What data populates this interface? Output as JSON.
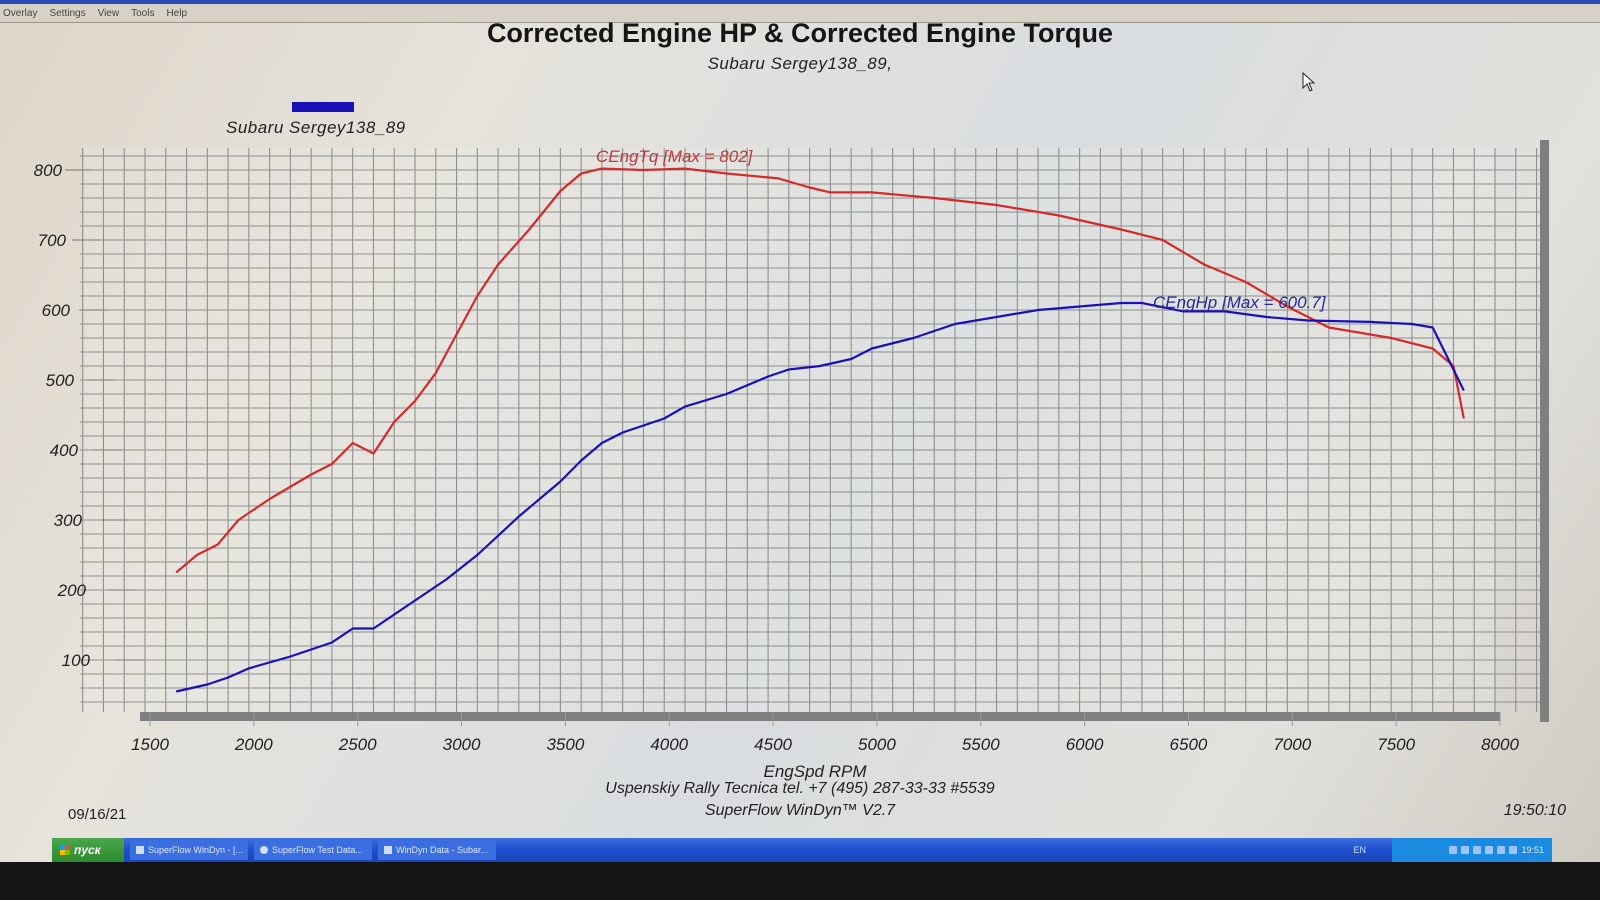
{
  "menu": {
    "items": [
      "Overlay",
      "Settings",
      "View",
      "Tools",
      "Help"
    ]
  },
  "header": {
    "title": "Corrected Engine HP & Corrected Engine Torque",
    "subtitle": "Subaru Sergey138_89,"
  },
  "legend": {
    "label": "Subaru Sergey138_89",
    "swatch_color": "#1a10b8"
  },
  "annotations": {
    "torque": "CEngTq [Max = 802]",
    "hp": "CEngHp [Max = 600.7]"
  },
  "footer": {
    "date": "09/16/21",
    "time": "19:50:10",
    "company": "Uspenskiy Rally Tecnica   tel. +7 (495) 287-33-33 #5539",
    "app": "SuperFlow WinDyn™ V2.7"
  },
  "taskbar": {
    "start_label": "пуск",
    "tasks": [
      "SuperFlow WinDyn - [...",
      "SuperFlow Test Data...",
      "WinDyn Data - Subar..."
    ],
    "language": "EN",
    "clock": "19:51"
  },
  "colors": {
    "torque": "#d42a2a",
    "hp": "#1a10b8",
    "grid": "#8e9090"
  },
  "chart_data": {
    "type": "line",
    "title": "Corrected Engine HP & Corrected Engine Torque",
    "subtitle": "Subaru Sergey138_89,",
    "xlabel": "EngSpd  RPM",
    "ylabel": "",
    "xlim": [
      1500,
      8000
    ],
    "ylim": [
      0,
      830
    ],
    "x_ticks": [
      1500,
      2000,
      2500,
      3000,
      3500,
      4000,
      4500,
      5000,
      5500,
      6000,
      6500,
      7000,
      7500,
      8000
    ],
    "y_ticks": [
      100,
      200,
      300,
      400,
      500,
      600,
      700,
      800
    ],
    "grid": true,
    "legend": [
      "Subaru Sergey138_89"
    ],
    "series": [
      {
        "name": "CEngTq",
        "label": "CEngTq [Max = 802]",
        "color": "#d42a2a",
        "max": 802,
        "x": [
          1650,
          1750,
          1850,
          1950,
          2100,
          2300,
          2400,
          2500,
          2600,
          2700,
          2800,
          2900,
          3000,
          3100,
          3200,
          3350,
          3500,
          3600,
          3700,
          3900,
          4100,
          4300,
          4550,
          4700,
          4800,
          5000,
          5300,
          5600,
          5900,
          6200,
          6400,
          6600,
          6800,
          7000,
          7200,
          7500,
          7700,
          7800,
          7850
        ],
        "values": [
          225,
          250,
          265,
          300,
          330,
          365,
          380,
          410,
          395,
          440,
          470,
          510,
          565,
          620,
          665,
          715,
          770,
          795,
          802,
          800,
          802,
          795,
          788,
          775,
          768,
          768,
          760,
          750,
          735,
          715,
          700,
          665,
          640,
          605,
          575,
          560,
          545,
          520,
          445
        ]
      },
      {
        "name": "CEngHp",
        "label": "CEngHp [Max = 600.7]",
        "color": "#1a10b8",
        "max": 600.7,
        "x": [
          1650,
          1800,
          1900,
          2000,
          2200,
          2400,
          2500,
          2600,
          2800,
          2950,
          3100,
          3300,
          3500,
          3600,
          3700,
          3800,
          4000,
          4100,
          4300,
          4500,
          4600,
          4750,
          4900,
          5000,
          5200,
          5400,
          5600,
          5800,
          6000,
          6200,
          6300,
          6500,
          6700,
          6900,
          7100,
          7400,
          7600,
          7700,
          7850
        ],
        "values": [
          55,
          65,
          75,
          88,
          105,
          125,
          145,
          145,
          185,
          215,
          250,
          305,
          355,
          385,
          410,
          425,
          445,
          462,
          480,
          505,
          515,
          520,
          530,
          545,
          560,
          580,
          590,
          600,
          605,
          610,
          610,
          598,
          598,
          590,
          585,
          583,
          580,
          575,
          485
        ]
      }
    ]
  }
}
